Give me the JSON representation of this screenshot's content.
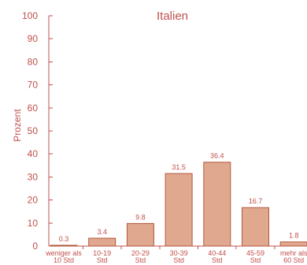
{
  "chart_data": {
    "type": "bar",
    "title": "Italien",
    "ylabel": "Prozent",
    "xlabel": "",
    "ylim": [
      0,
      100
    ],
    "yticks": [
      0,
      10,
      20,
      30,
      40,
      50,
      60,
      70,
      80,
      90,
      100
    ],
    "categories": [
      [
        "weniger als",
        "10 Std"
      ],
      [
        "10-19",
        "Std"
      ],
      [
        "20-29",
        "Std"
      ],
      [
        "30-39",
        "Std"
      ],
      [
        "40-44",
        "Std"
      ],
      [
        "45-59",
        "Std"
      ],
      [
        "mehr als",
        "60 Std"
      ]
    ],
    "values": [
      0.3,
      3.4,
      9.8,
      31.5,
      36.4,
      16.7,
      1.8
    ],
    "value_labels": [
      "0.3",
      "3.4",
      "9.8",
      "31.5",
      "36.4",
      "16.7",
      "1.8"
    ],
    "grid": false,
    "legend": "none",
    "colors": {
      "text": "#c0504d",
      "bar_fill": "#e0a88e",
      "bar_stroke": "#b5563e"
    }
  }
}
